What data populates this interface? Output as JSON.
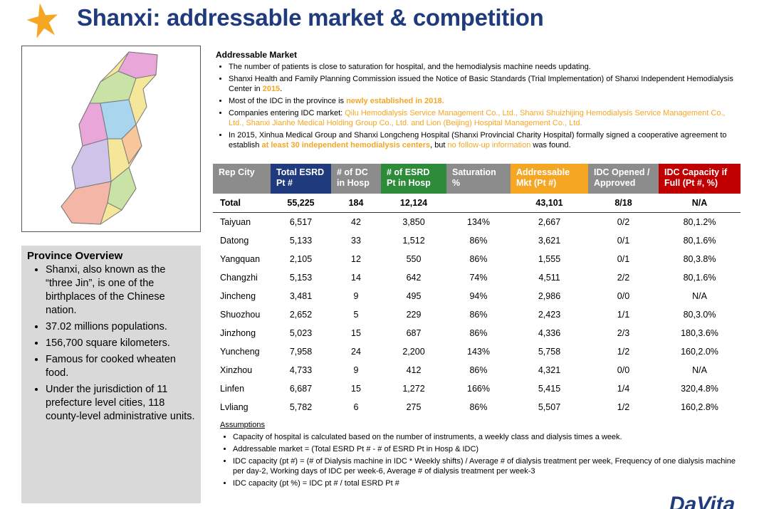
{
  "header": {
    "title": "Shanxi: addressable market & competition"
  },
  "province": {
    "title": "Province Overview",
    "bullets": [
      "Shanxi, also known as the “three Jin”, is one of the birthplaces of the Chinese nation.",
      "37.02 millions populations.",
      "156,700 square kilometers.",
      "Famous for cooked wheaten food.",
      "Under the jurisdiction of 11 prefecture level cities, 118 county-level administrative units."
    ]
  },
  "market": {
    "title": "Addressable Market",
    "bullets": [
      [
        {
          "text": "The number of patients is close to saturation for hospital, and the hemodialysis machine needs updating."
        }
      ],
      [
        {
          "text": "Shanxi Health and Family Planning Commission issued the Notice of Basic Standards (Trial Implementation) of Shanxi Independent Hemodialysis Center in "
        },
        {
          "text": "2015",
          "emphasis": "strong"
        },
        {
          "text": "."
        }
      ],
      [
        {
          "text": "Most of the IDC in the province is "
        },
        {
          "text": "newly established in 2018.",
          "emphasis": "strong"
        }
      ],
      [
        {
          "text": "Companies entering IDC market: "
        },
        {
          "text": "Qilu Hemodialysis Service Management Co., Ltd., Shanxi Shuizhijing Hemodialysis Service Management Co., Ltd., Shanxi Jianhe Medical Holding Group Co., Ltd. and Lion (Beijing) Hospital Management Co., Ltd.",
          "emphasis": "light"
        }
      ],
      [
        {
          "text": "In 2015, Xinhua Medical Group and Shanxi Longcheng Hospital (Shanxi Provincial Charity Hospital) formally signed a cooperative agreement to establish "
        },
        {
          "text": "at least 30 independent hemodialysis centers",
          "emphasis": "strong"
        },
        {
          "text": ", but "
        },
        {
          "text": "no follow-up information",
          "emphasis": "light"
        },
        {
          "text": " was found."
        }
      ]
    ]
  },
  "table": {
    "columns": [
      {
        "label": "Rep City",
        "color": "#8c8c8c"
      },
      {
        "label": "Total ESRD Pt #",
        "color": "#1f3b7d"
      },
      {
        "label": "# of DC in Hosp",
        "color": "#8c8c8c"
      },
      {
        "label": "# of ESRD Pt in Hosp",
        "color": "#2e8b3a"
      },
      {
        "label": "Saturation %",
        "color": "#8c8c8c"
      },
      {
        "label": "Addressable Mkt (Pt #)",
        "color": "#f5a623"
      },
      {
        "label": "IDC Opened / Approved",
        "color": "#8c8c8c"
      },
      {
        "label": "IDC Capacity if Full (Pt #, %)",
        "color": "#c00000"
      }
    ],
    "rows": [
      [
        "Total",
        "55,225",
        "184",
        "12,124",
        "",
        "43,101",
        "8/18",
        "N/A"
      ],
      [
        "Taiyuan",
        "6,517",
        "42",
        "3,850",
        "134%",
        "2,667",
        "0/2",
        "80,1.2%"
      ],
      [
        "Datong",
        "5,133",
        "33",
        "1,512",
        "86%",
        "3,621",
        "0/1",
        "80,1.6%"
      ],
      [
        "Yangquan",
        "2,105",
        "12",
        "550",
        "86%",
        "1,555",
        "0/1",
        "80,3.8%"
      ],
      [
        "Changzhi",
        "5,153",
        "14",
        "642",
        "74%",
        "4,511",
        "2/2",
        "80,1.6%"
      ],
      [
        "Jincheng",
        "3,481",
        "9",
        "495",
        "94%",
        "2,986",
        "0/0",
        "N/A"
      ],
      [
        "Shuozhou",
        "2,652",
        "5",
        "229",
        "86%",
        "2,423",
        "1/1",
        "80,3.0%"
      ],
      [
        "Jinzhong",
        "5,023",
        "15",
        "687",
        "86%",
        "4,336",
        "2/3",
        "180,3.6%"
      ],
      [
        "Yuncheng",
        "7,958",
        "24",
        "2,200",
        "143%",
        "5,758",
        "1/2",
        "160,2.0%"
      ],
      [
        "Xinzhou",
        "4,733",
        "9",
        "412",
        "86%",
        "4,321",
        "0/0",
        "N/A"
      ],
      [
        "Linfen",
        "6,687",
        "15",
        "1,272",
        "166%",
        "5,415",
        "1/4",
        "320,4.8%"
      ],
      [
        "Lvliang",
        "5,782",
        "6",
        "275",
        "86%",
        "5,507",
        "1/2",
        "160,2.8%"
      ]
    ]
  },
  "assumptions": {
    "title": "Assumptions",
    "bullets": [
      "Capacity of hospital is calculated based on the number of instruments, a weekly class and dialysis times a week.",
      "Addressable market = (Total ESRD Pt # - # of ESRD Pt in Hosp & IDC)",
      "IDC capacity (pt #) = (# of Dialysis machine in IDC * Weekly shifts) / Average # of dialysis treatment per week,  Frequency of one dialysis machine per day-2, Working days of IDC per week-6, Average # of dialysis treatment per week-3",
      "IDC capacity (pt %) = IDC pt # / total ESRD Pt #"
    ]
  },
  "logo": "DaVita"
}
